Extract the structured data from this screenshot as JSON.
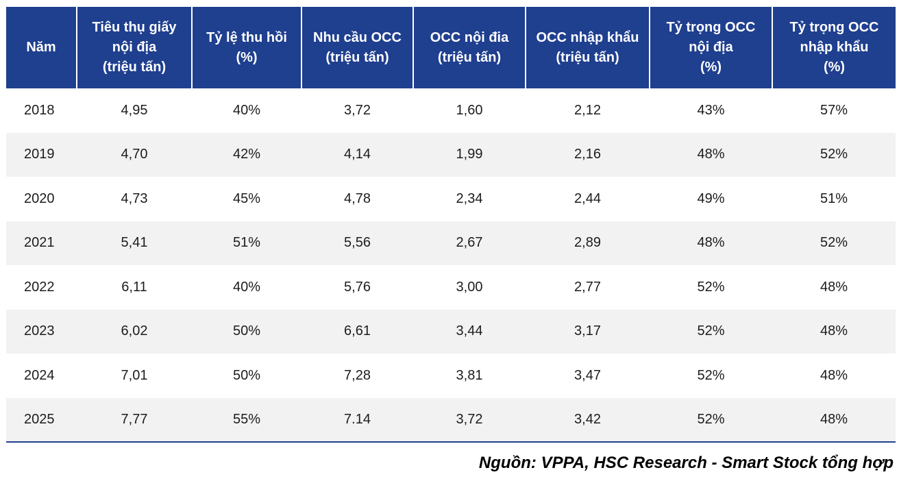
{
  "chart_data": {
    "type": "table",
    "columns": [
      "Năm",
      "Tiêu thụ giấy\nnội địa\n(triệu tấn)",
      "Tỷ lệ thu hồi\n(%)",
      "Nhu cầu OCC\n(triệu tấn)",
      "OCC nội đia\n(triệu tấn)",
      "OCC nhập khẩu\n(triệu tấn)",
      "Tỷ trọng OCC\nnội địa\n(%)",
      "Tỷ trọng OCC\nnhập khẩu\n(%)"
    ],
    "rows": [
      [
        "2018",
        "4,95",
        "40%",
        "3,72",
        "1,60",
        "2,12",
        "43%",
        "57%"
      ],
      [
        "2019",
        "4,70",
        "42%",
        "4,14",
        "1,99",
        "2,16",
        "48%",
        "52%"
      ],
      [
        "2020",
        "4,73",
        "45%",
        "4,78",
        "2,34",
        "2,44",
        "49%",
        "51%"
      ],
      [
        "2021",
        "5,41",
        "51%",
        "5,56",
        "2,67",
        "2,89",
        "48%",
        "52%"
      ],
      [
        "2022",
        "6,11",
        "40%",
        "5,76",
        "3,00",
        "2,77",
        "52%",
        "48%"
      ],
      [
        "2023",
        "6,02",
        "50%",
        "6,61",
        "3,44",
        "3,17",
        "52%",
        "48%"
      ],
      [
        "2024",
        "7,01",
        "50%",
        "7,28",
        "3,81",
        "3,47",
        "52%",
        "48%"
      ],
      [
        "2025",
        "7,77",
        "55%",
        "7.14",
        "3,72",
        "3,42",
        "52%",
        "48%"
      ]
    ]
  },
  "source": "Nguồn: VPPA, HSC Research - Smart Stock tổng hợp",
  "colors": {
    "header_bg": "#1f3f8f",
    "header_text": "#ffffff",
    "stripe": "#f2f2f2",
    "rule": "#1f3f8f"
  }
}
